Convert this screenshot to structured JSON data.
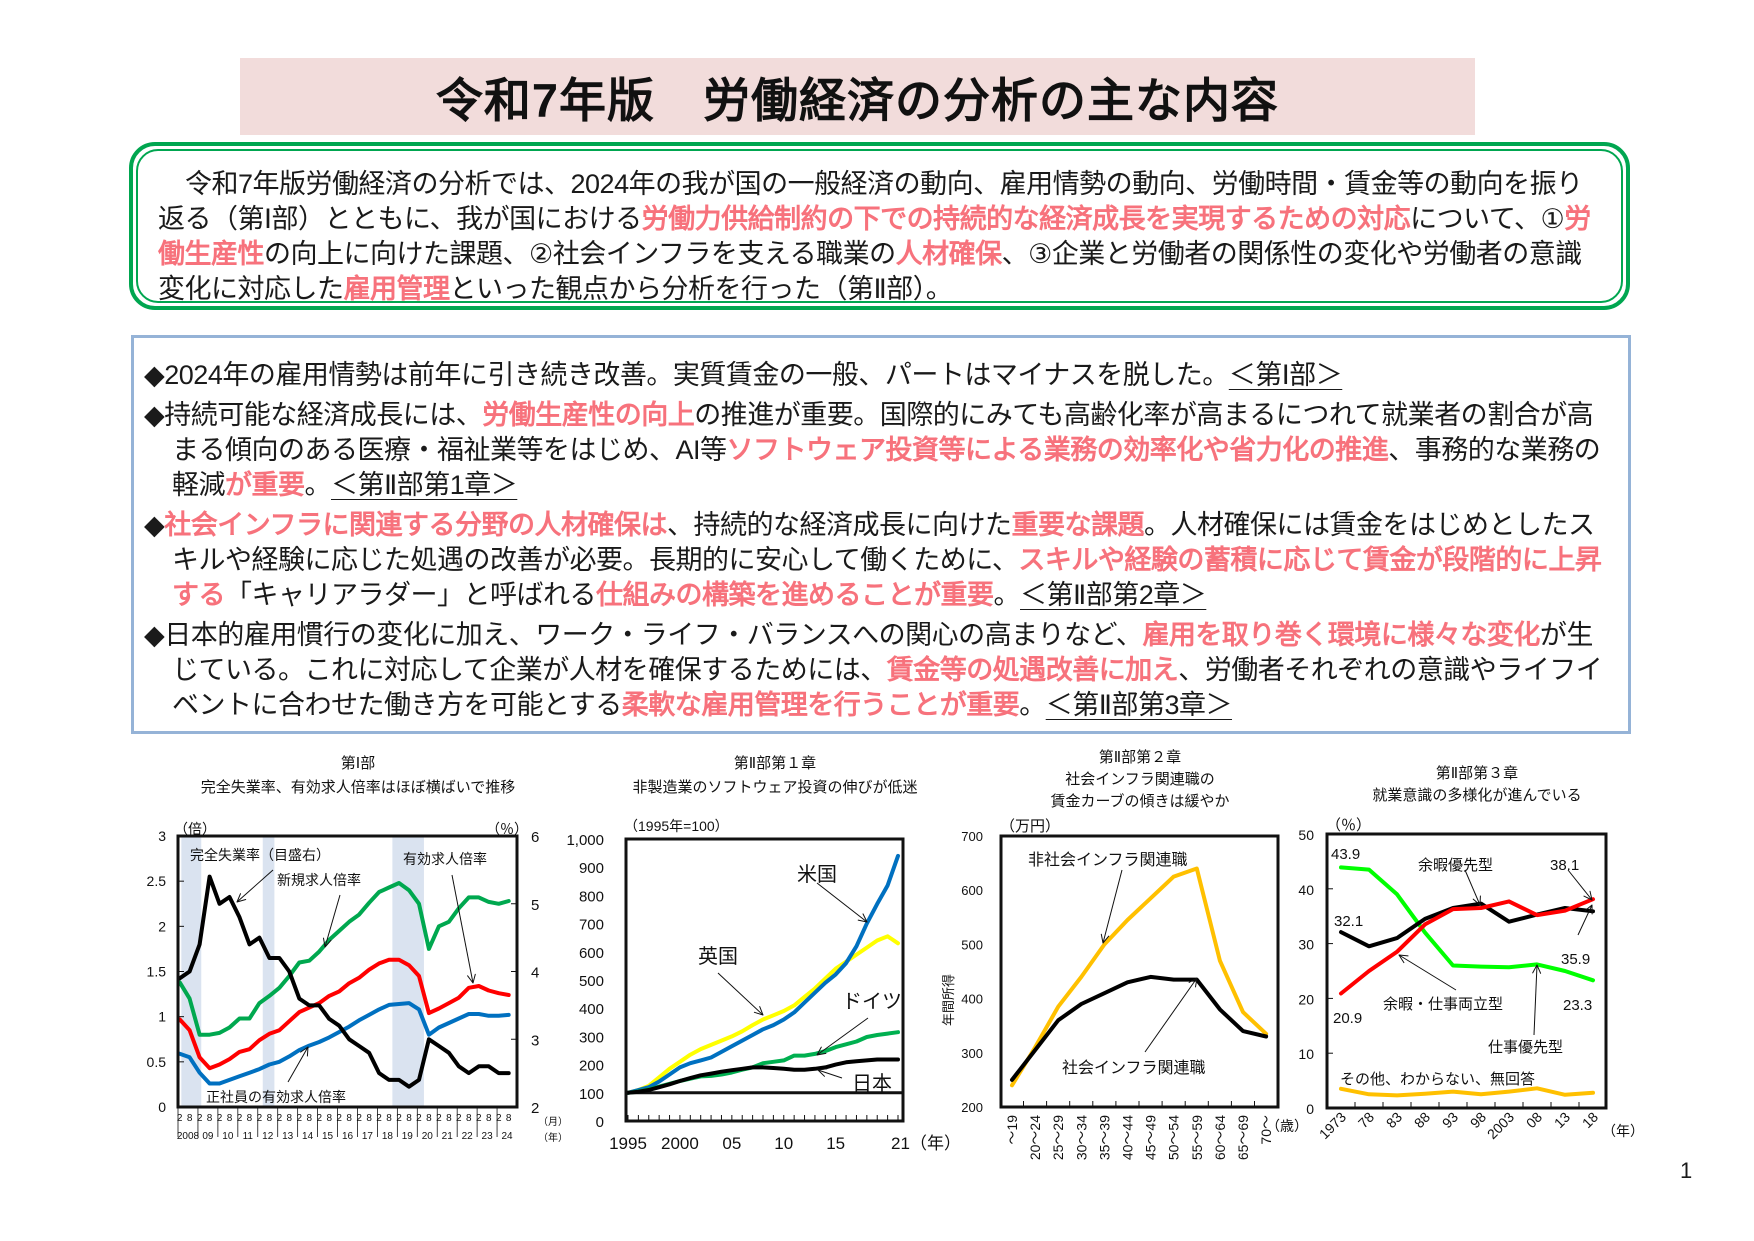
{
  "header": {
    "title": "令和7年版　労働経済の分析の主な内容"
  },
  "summary": {
    "segments": [
      {
        "text": "令和7年版労働経済の分析では、2024年の我が国の一般経済の動向、雇用情勢の動向、労働時間・賃金等の動向を振り返る（第Ⅰ部）とともに、我が国における",
        "hl": false
      },
      {
        "text": "労働力供給制約の下での持続的な経済成長を実現するための対応",
        "hl": true
      },
      {
        "text": "について、①",
        "hl": false
      },
      {
        "text": "労働生産性",
        "hl": true
      },
      {
        "text": "の向上に向けた課題、②社会インフラを支える職業の",
        "hl": false
      },
      {
        "text": "人材確保",
        "hl": true
      },
      {
        "text": "、③企業と労働者の関係性の変化や労働者の意識変化に対応した",
        "hl": false
      },
      {
        "text": "雇用管理",
        "hl": true
      },
      {
        "text": "といった観点から分析を行った（第Ⅱ部）。",
        "hl": false
      }
    ]
  },
  "points": [
    {
      "segments": [
        {
          "text": "◆2024年の雇用情勢は前年に引き続き改善。実質賃金の一般、パートはマイナスを脱した。",
          "hl": false
        },
        {
          "text": "＜第Ⅰ部＞",
          "ref": true
        }
      ]
    },
    {
      "segments": [
        {
          "text": "◆持続可能な経済成長には、",
          "hl": false
        },
        {
          "text": "労働生産性の向上",
          "hl": true
        },
        {
          "text": "の推進が重要。国際的にみても高齢化率が高まるにつれて就業者の割合が高まる傾向のある医療・福祉業等をはじめ、AI等",
          "hl": false
        },
        {
          "text": "ソフトウェア投資等による業務の効率化や省力化の推進",
          "hl": true
        },
        {
          "text": "、事務的な業務の軽減",
          "hl": false
        },
        {
          "text": "が重要",
          "hl": true
        },
        {
          "text": "。",
          "hl": false
        },
        {
          "text": "＜第Ⅱ部第1章＞",
          "ref": true
        }
      ]
    },
    {
      "segments": [
        {
          "text": "◆",
          "hl": false
        },
        {
          "text": "社会インフラに関連する分野の人材確保は",
          "hl": true
        },
        {
          "text": "、持続的な経済成長に向けた",
          "hl": false
        },
        {
          "text": "重要な課題",
          "hl": true
        },
        {
          "text": "。人材確保には賃金をはじめとしたスキルや経験に応じた処遇の改善が必要。長期的に安心して働くために、",
          "hl": false
        },
        {
          "text": "スキルや経験の蓄積に応じて賃金が段階的に上昇する",
          "hl": true
        },
        {
          "text": "「キャリアラダー」と呼ばれる",
          "hl": false
        },
        {
          "text": "仕組みの構築を進めることが重要",
          "hl": true
        },
        {
          "text": "。",
          "hl": false
        },
        {
          "text": "＜第Ⅱ部第2章＞",
          "ref": true
        }
      ]
    },
    {
      "segments": [
        {
          "text": "◆日本的雇用慣行の変化に加え、ワーク・ライフ・バランスへの関心の高まりなど、",
          "hl": false
        },
        {
          "text": "雇用を取り巻く環境に様々な変化",
          "hl": true
        },
        {
          "text": "が生じている。これに対応して企業が人材を確保するためには、",
          "hl": false
        },
        {
          "text": "賃金等の処遇改善に加え",
          "hl": true
        },
        {
          "text": "、労働者それぞれの意識やライフイベントに合わせた働き方を可能とする",
          "hl": false
        },
        {
          "text": "柔軟な雇用管理を行うことが重要",
          "hl": true
        },
        {
          "text": "。",
          "hl": false
        },
        {
          "text": "＜第Ⅱ部第3章＞",
          "ref": true
        }
      ]
    }
  ],
  "colors": {
    "highlight": "#f7727c",
    "green_frame": "#00a650",
    "blue_frame": "#95b3d7",
    "title_band": "#f2dcdb",
    "shade": "#dae3f0"
  },
  "page_number": "1",
  "chart_data": [
    {
      "type": "line",
      "section": "第Ⅰ部",
      "title": "完全失業率、有効求人倍率はほぼ横ばいで推移",
      "ylabel_left": "（倍）",
      "ylabel_right": "（％）",
      "ylim_left": [
        0,
        3
      ],
      "ylim_right": [
        2,
        6
      ],
      "yticks_left": [
        "0",
        "0.5",
        "1",
        "1.5",
        "2",
        "2.5",
        "3"
      ],
      "yticks_right": [
        "2",
        "3",
        "4",
        "5",
        "6"
      ],
      "x_tick_months": [
        "2",
        "8"
      ],
      "x_tick_years": [
        "2008",
        "09",
        "10",
        "11",
        "12",
        "13",
        "14",
        "15",
        "16",
        "17",
        "18",
        "19",
        "20",
        "21",
        "22",
        "23",
        "24"
      ],
      "x_unit_month": "（月）",
      "x_unit_year": "（年）",
      "shaded_periods": [
        [
          "2008-03",
          "2009-03"
        ],
        [
          "2012-04",
          "2012-11"
        ],
        [
          "2018-10",
          "2020-05"
        ]
      ],
      "x": [
        "2008-02",
        "2008-08",
        "2009-02",
        "2009-08",
        "2010-02",
        "2010-08",
        "2011-02",
        "2011-08",
        "2012-02",
        "2012-08",
        "2013-02",
        "2013-08",
        "2014-02",
        "2014-08",
        "2015-02",
        "2015-08",
        "2016-02",
        "2016-08",
        "2017-02",
        "2017-08",
        "2018-02",
        "2018-08",
        "2019-02",
        "2019-08",
        "2020-02",
        "2020-08",
        "2021-02",
        "2021-08",
        "2022-02",
        "2022-08",
        "2023-02",
        "2023-08",
        "2024-02",
        "2024-08"
      ],
      "series": [
        {
          "name": "新規求人倍率",
          "axis": "left",
          "color": "#00a84f",
          "values": [
            1.38,
            1.2,
            0.8,
            0.8,
            0.82,
            0.88,
            0.98,
            0.98,
            1.15,
            1.23,
            1.32,
            1.45,
            1.6,
            1.62,
            1.72,
            1.85,
            1.95,
            2.05,
            2.13,
            2.26,
            2.38,
            2.43,
            2.48,
            2.4,
            2.25,
            1.75,
            2.0,
            2.05,
            2.2,
            2.32,
            2.32,
            2.27,
            2.25,
            2.28
          ]
        },
        {
          "name": "有効求人倍率",
          "axis": "left",
          "color": "#ff0000",
          "values": [
            0.97,
            0.85,
            0.55,
            0.43,
            0.47,
            0.53,
            0.61,
            0.64,
            0.74,
            0.81,
            0.85,
            0.95,
            1.05,
            1.1,
            1.15,
            1.23,
            1.28,
            1.37,
            1.43,
            1.52,
            1.59,
            1.63,
            1.63,
            1.57,
            1.45,
            1.04,
            1.09,
            1.15,
            1.21,
            1.32,
            1.34,
            1.29,
            1.26,
            1.24
          ]
        },
        {
          "name": "正社員の有効求人倍率",
          "axis": "left",
          "color": "#0070c0",
          "values": [
            0.59,
            0.55,
            0.38,
            0.26,
            0.26,
            0.3,
            0.34,
            0.38,
            0.42,
            0.47,
            0.5,
            0.56,
            0.63,
            0.68,
            0.72,
            0.77,
            0.83,
            0.89,
            0.96,
            1.02,
            1.08,
            1.13,
            1.14,
            1.15,
            1.08,
            0.8,
            0.88,
            0.93,
            0.98,
            1.03,
            1.03,
            1.01,
            1.01,
            1.02
          ]
        },
        {
          "name": "完全失業率（目盛右）",
          "axis": "right",
          "color": "#000000",
          "values": [
            3.9,
            4.0,
            4.4,
            5.4,
            5.0,
            5.1,
            4.8,
            4.4,
            4.5,
            4.2,
            4.2,
            4.0,
            3.6,
            3.5,
            3.5,
            3.3,
            3.2,
            3.0,
            2.9,
            2.8,
            2.5,
            2.4,
            2.4,
            2.3,
            2.4,
            3.0,
            2.9,
            2.8,
            2.6,
            2.5,
            2.6,
            2.6,
            2.5,
            2.5
          ]
        }
      ]
    },
    {
      "type": "line",
      "section": "第Ⅱ部第１章",
      "title": "非製造業のソフトウェア投資の伸びが低迷",
      "ylabel": "（1995年=100）",
      "ylim": [
        0,
        1000
      ],
      "yticks": [
        "0",
        "100",
        "200",
        "300",
        "400",
        "500",
        "600",
        "700",
        "800",
        "900",
        "1,000"
      ],
      "xtick_labels": [
        "1995",
        "2000",
        "05",
        "10",
        "15",
        "21（年）"
      ],
      "x": [
        1995,
        1996,
        1997,
        1998,
        1999,
        2000,
        2001,
        2002,
        2003,
        2004,
        2005,
        2006,
        2007,
        2008,
        2009,
        2010,
        2011,
        2012,
        2013,
        2014,
        2015,
        2016,
        2017,
        2018,
        2019,
        2020,
        2021
      ],
      "series": [
        {
          "name": "米国",
          "color": "#0070c0",
          "values": [
            100,
            110,
            120,
            140,
            165,
            190,
            205,
            215,
            225,
            245,
            265,
            285,
            305,
            325,
            340,
            360,
            385,
            420,
            455,
            490,
            520,
            560,
            620,
            700,
            770,
            835,
            940
          ]
        },
        {
          "name": "英国",
          "color": "#ffff00",
          "values": [
            100,
            110,
            125,
            155,
            185,
            210,
            235,
            255,
            270,
            285,
            300,
            318,
            340,
            360,
            375,
            390,
            410,
            440,
            470,
            505,
            540,
            565,
            590,
            615,
            640,
            655,
            630
          ]
        },
        {
          "name": "ドイツ",
          "color": "#00b050",
          "values": [
            100,
            105,
            112,
            122,
            132,
            142,
            150,
            158,
            160,
            165,
            172,
            182,
            190,
            205,
            210,
            215,
            232,
            232,
            238,
            248,
            262,
            272,
            282,
            298,
            305,
            310,
            315
          ]
        },
        {
          "name": "日本",
          "color": "#000000",
          "values": [
            100,
            104,
            110,
            120,
            130,
            142,
            152,
            162,
            168,
            175,
            180,
            185,
            190,
            190,
            188,
            185,
            182,
            182,
            185,
            190,
            200,
            208,
            212,
            215,
            218,
            218,
            218
          ]
        }
      ]
    },
    {
      "type": "line",
      "section": "第Ⅱ部第２章",
      "title_lines": [
        "社会インフラ関連職の",
        "賃金カーブの傾きは緩やか"
      ],
      "ylabel": "（万円）",
      "ylabel_side": "年間所得",
      "ylim": [
        200,
        700
      ],
      "yticks": [
        "200",
        "300",
        "400",
        "500",
        "600",
        "700"
      ],
      "categories": [
        "～19",
        "20～24",
        "25～29",
        "30～34",
        "35～39",
        "40～44",
        "45～49",
        "50～54",
        "55～59",
        "60～64",
        "65～69",
        "70～"
      ],
      "x_unit": "（歳）",
      "series": [
        {
          "name": "非社会インフラ関連職",
          "color": "#ffc000",
          "values": [
            240,
            310,
            385,
            440,
            500,
            545,
            585,
            625,
            640,
            470,
            375,
            335
          ]
        },
        {
          "name": "社会インフラ関連職",
          "color": "#000000",
          "values": [
            250,
            305,
            360,
            390,
            410,
            430,
            440,
            435,
            435,
            380,
            340,
            330
          ]
        }
      ]
    },
    {
      "type": "line",
      "section": "第Ⅱ部第３章",
      "title": "就業意識の多様化が進んでいる",
      "ylabel": "（％）",
      "ylim": [
        0,
        50
      ],
      "yticks": [
        "0",
        "10",
        "20",
        "30",
        "40",
        "50"
      ],
      "xtick_labels": [
        "1973",
        "78",
        "83",
        "88",
        "93",
        "98",
        "2003",
        "08",
        "13",
        "18"
      ],
      "x_unit": "（年）",
      "x": [
        1973,
        1978,
        1983,
        1988,
        1993,
        1998,
        2003,
        2008,
        2013,
        2018
      ],
      "series": [
        {
          "name": "仕事優先型",
          "color": "#00ff00",
          "values": [
            43.9,
            43.5,
            39,
            32,
            26,
            25.8,
            25.7,
            26.2,
            25,
            23.3
          ]
        },
        {
          "name": "余暇優先型",
          "color": "#000000",
          "values": [
            32.1,
            29.5,
            31,
            34.5,
            36.5,
            37.3,
            34,
            35.3,
            36.5,
            35.9
          ]
        },
        {
          "name": "余暇・仕事両立型",
          "color": "#ff0000",
          "values": [
            20.9,
            25,
            28.5,
            33.5,
            36.3,
            36.5,
            37.7,
            35.2,
            36,
            38.1
          ]
        },
        {
          "name": "その他、わからない、無回答",
          "color": "#ffc000",
          "values": [
            3.5,
            2.5,
            2.3,
            2.6,
            3,
            2.5,
            3,
            3.6,
            2.4,
            2.8
          ]
        }
      ],
      "data_labels": [
        "43.9",
        "32.1",
        "20.9",
        "38.1",
        "35.9",
        "23.3"
      ]
    }
  ]
}
